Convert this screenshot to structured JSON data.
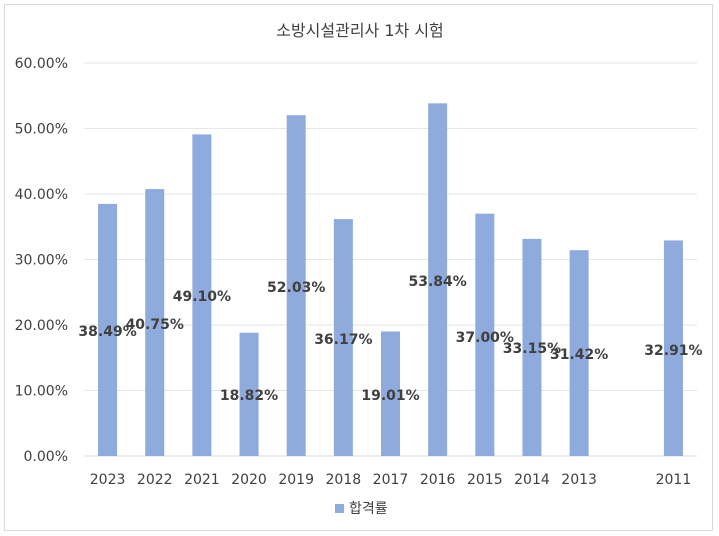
{
  "chart_data": {
    "type": "bar",
    "title": "소방시설관리사 1차 시험",
    "categories": [
      "2023",
      "2022",
      "2021",
      "2020",
      "2019",
      "2018",
      "2017",
      "2016",
      "2015",
      "2014",
      "2013",
      "",
      "2011"
    ],
    "series": [
      {
        "name": "합격률",
        "values": [
          38.49,
          40.75,
          49.1,
          18.82,
          52.03,
          36.17,
          19.01,
          53.84,
          37.0,
          33.15,
          31.42,
          null,
          32.91
        ],
        "labels": [
          "38.49%",
          "40.75%",
          "49.10%",
          "18.82%",
          "52.03%",
          "36.17%",
          "19.01%",
          "53.84%",
          "37.00%",
          "33.15%",
          "31.42%",
          "",
          "32.91%"
        ],
        "color": "#8faadc"
      }
    ],
    "yticks": [
      "0.00%",
      "10.00%",
      "20.00%",
      "30.00%",
      "40.00%",
      "50.00%",
      "60.00%"
    ],
    "ylim": [
      0,
      60
    ],
    "grid": true,
    "legend_position": "bottom"
  }
}
